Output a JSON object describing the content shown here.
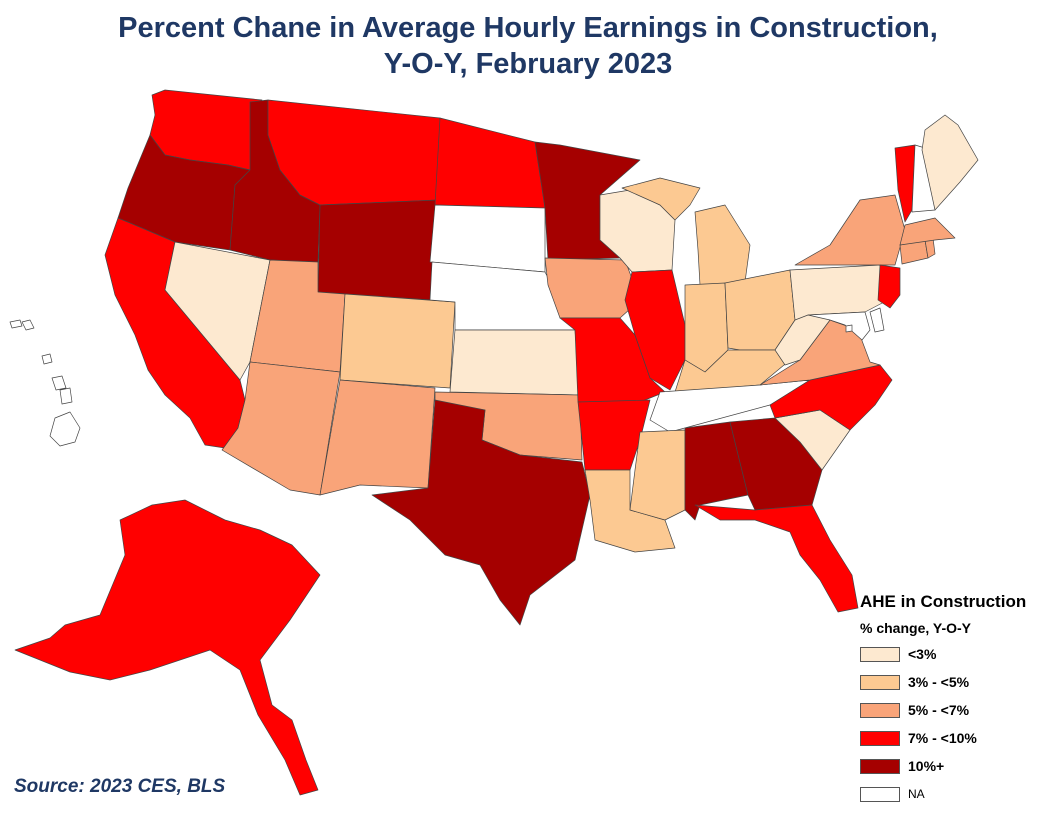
{
  "title": {
    "line1": "Percent Chane in Average Hourly Earnings in Construction,",
    "line2": "Y-O-Y, February 2023"
  },
  "source": "Source: 2023 CES, BLS",
  "legend": {
    "title": "AHE in Construction",
    "subtitle": "% change, Y-O-Y",
    "items": [
      {
        "key": "c1",
        "label": "<3%",
        "color": "#fde9d0"
      },
      {
        "key": "c2",
        "label": "3% - <5%",
        "color": "#fcc992"
      },
      {
        "key": "c3",
        "label": "5% - <7%",
        "color": "#f9a479"
      },
      {
        "key": "c4",
        "label": "7% - <10%",
        "color": "#ff0000"
      },
      {
        "key": "c5",
        "label": "10%+",
        "color": "#a50000"
      },
      {
        "key": "na",
        "label": "NA",
        "color": "#ffffff"
      }
    ]
  },
  "states": {
    "WA": "c4",
    "OR": "c5",
    "CA": "c4",
    "NV": "c1",
    "ID": "c5",
    "MT": "c4",
    "WY": "c5",
    "UT": "c3",
    "AZ": "c3",
    "CO": "c2",
    "NM": "c3",
    "ND": "c4",
    "SD": "na",
    "NE": "na",
    "KS": "c1",
    "OK": "c3",
    "TX": "c5",
    "MN": "c5",
    "IA": "c3",
    "MO": "c4",
    "AR": "c4",
    "LA": "c2",
    "WI": "c1",
    "IL": "c4",
    "MI": "c2",
    "IN": "c2",
    "OH": "c2",
    "KY": "c2",
    "TN": "na",
    "MS": "c2",
    "AL": "c5",
    "GA": "c5",
    "FL": "c4",
    "SC": "c1",
    "NC": "c4",
    "VA": "c3",
    "WV": "c1",
    "PA": "c1",
    "NY": "c3",
    "VT": "c4",
    "NH": "na",
    "ME": "c1",
    "MA": "c3",
    "CT": "c3",
    "RI": "c3",
    "NJ": "c4",
    "DE": "na",
    "MD": "na",
    "DC": "na",
    "AK": "c4",
    "HI": "na"
  }
}
